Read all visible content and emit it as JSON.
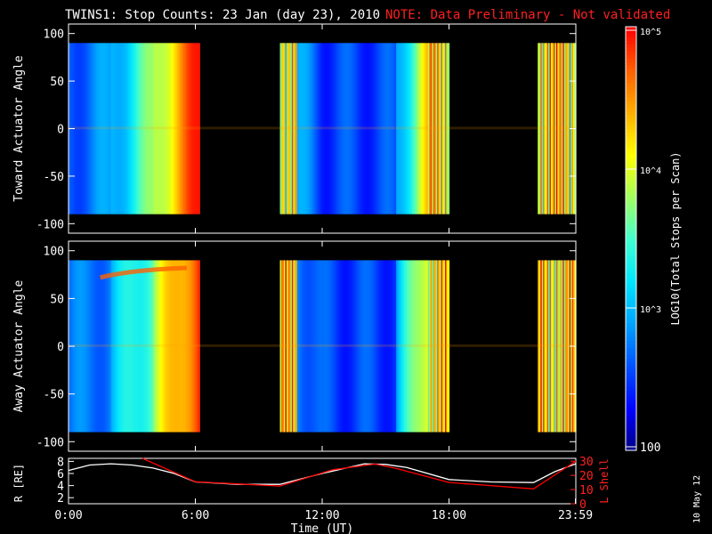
{
  "title": "TWINS1: Stop Counts: 23 Jan (day  23), 2010",
  "note": "NOTE: Data Preliminary - Not validated",
  "side_date": "10 May 12",
  "colorbar": {
    "label": "LOG10(Total Stops per Scan)",
    "ticks": [
      "10^5",
      "10^4",
      "10^3",
      "100"
    ],
    "colors": [
      "#000080",
      "#0000ff",
      "#0050ff",
      "#00a0ff",
      "#00e5ff",
      "#40ffd0",
      "#a0ff60",
      "#ffff00",
      "#ffb000",
      "#ff6000",
      "#ff0000"
    ]
  },
  "chart_data": [
    {
      "type": "heatmap",
      "ylabel": "Toward Actuator Angle",
      "ylim": [
        -110,
        110
      ],
      "yticks": [
        "100",
        "50",
        "0",
        "-50",
        "-100"
      ],
      "data_angle_range": [
        -90,
        90
      ],
      "xlim_hours": [
        0,
        24
      ],
      "data_segments_hours": [
        [
          0,
          6.2
        ],
        [
          10,
          18
        ],
        [
          22.2,
          24
        ]
      ]
    },
    {
      "type": "heatmap",
      "ylabel": "Away Actuator Angle",
      "ylim": [
        -110,
        110
      ],
      "yticks": [
        "100",
        "50",
        "0",
        "-50",
        "-100"
      ],
      "data_angle_range": [
        -90,
        90
      ],
      "xlim_hours": [
        0,
        24
      ],
      "data_segments_hours": [
        [
          0,
          6.2
        ],
        [
          10,
          18
        ],
        [
          22.2,
          24
        ]
      ]
    },
    {
      "type": "line",
      "ylabel": "R [RE]",
      "y2label": "L Shell",
      "yticks": [
        "8",
        "6",
        "4",
        "2"
      ],
      "y2ticks": [
        "30",
        "20",
        "10",
        "0"
      ],
      "ylim": [
        1,
        8.5
      ],
      "y2lim": [
        0,
        32
      ],
      "xticks": [
        "0:00",
        "6:00",
        "12:00",
        "18:00",
        "23:59"
      ],
      "xlabel": "Time (UT)",
      "series": [
        {
          "color": "#ffffff",
          "x": [
            0,
            1,
            2,
            3,
            4,
            5,
            6,
            8,
            10,
            12,
            14,
            15,
            16,
            18,
            20,
            22,
            23,
            24
          ],
          "y": [
            6.5,
            7.4,
            7.6,
            7.4,
            6.9,
            6.0,
            4.6,
            4.2,
            4.2,
            6.0,
            7.6,
            7.5,
            7.0,
            5.0,
            4.6,
            4.5,
            6.3,
            7.6
          ]
        },
        {
          "color": "#ff0000",
          "x": [
            3.5,
            6,
            10,
            12.5,
            14.5,
            15.5,
            18,
            22,
            24
          ],
          "y": [
            32,
            15.5,
            12.5,
            24,
            28,
            25,
            15,
            10.5,
            30
          ]
        }
      ]
    }
  ]
}
